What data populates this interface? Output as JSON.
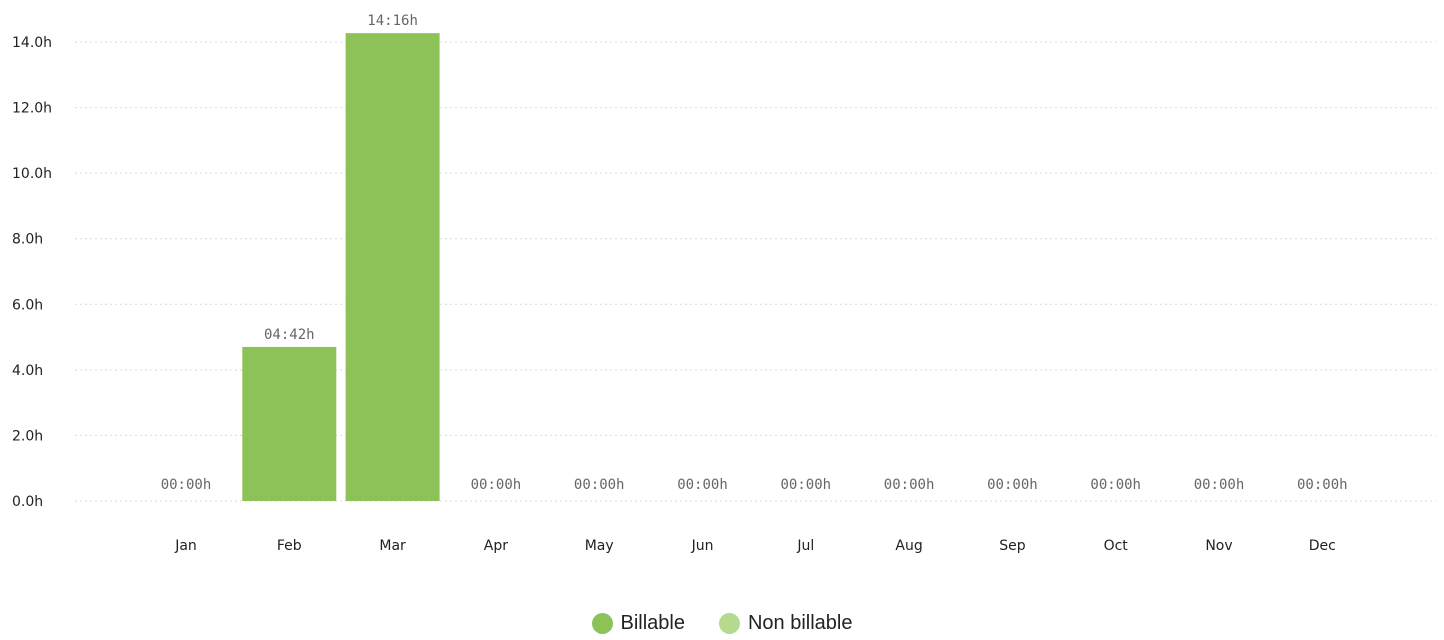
{
  "chart_data": {
    "type": "bar",
    "categories": [
      "Jan",
      "Feb",
      "Mar",
      "Apr",
      "May",
      "Jun",
      "Jul",
      "Aug",
      "Sep",
      "Oct",
      "Nov",
      "Dec"
    ],
    "series": [
      {
        "name": "Billable",
        "values": [
          0,
          4.7,
          14.27,
          0,
          0,
          0,
          0,
          0,
          0,
          0,
          0,
          0
        ],
        "color": "#8cc257"
      },
      {
        "name": "Non billable",
        "values": [
          0,
          0,
          0,
          0,
          0,
          0,
          0,
          0,
          0,
          0,
          0,
          0
        ],
        "color": "#b4d98f"
      }
    ],
    "data_labels": [
      "00:00h",
      "04:42h",
      "14:16h",
      "00:00h",
      "00:00h",
      "00:00h",
      "00:00h",
      "00:00h",
      "00:00h",
      "00:00h",
      "00:00h",
      "00:00h"
    ],
    "y_ticks": [
      "0.0h",
      "2.0h",
      "4.0h",
      "6.0h",
      "8.0h",
      "10.0h",
      "12.0h",
      "14.0h"
    ],
    "ylim": [
      0,
      14
    ],
    "grid": true,
    "legend_position": "bottom-center",
    "title": "",
    "xlabel": "",
    "ylabel": ""
  }
}
